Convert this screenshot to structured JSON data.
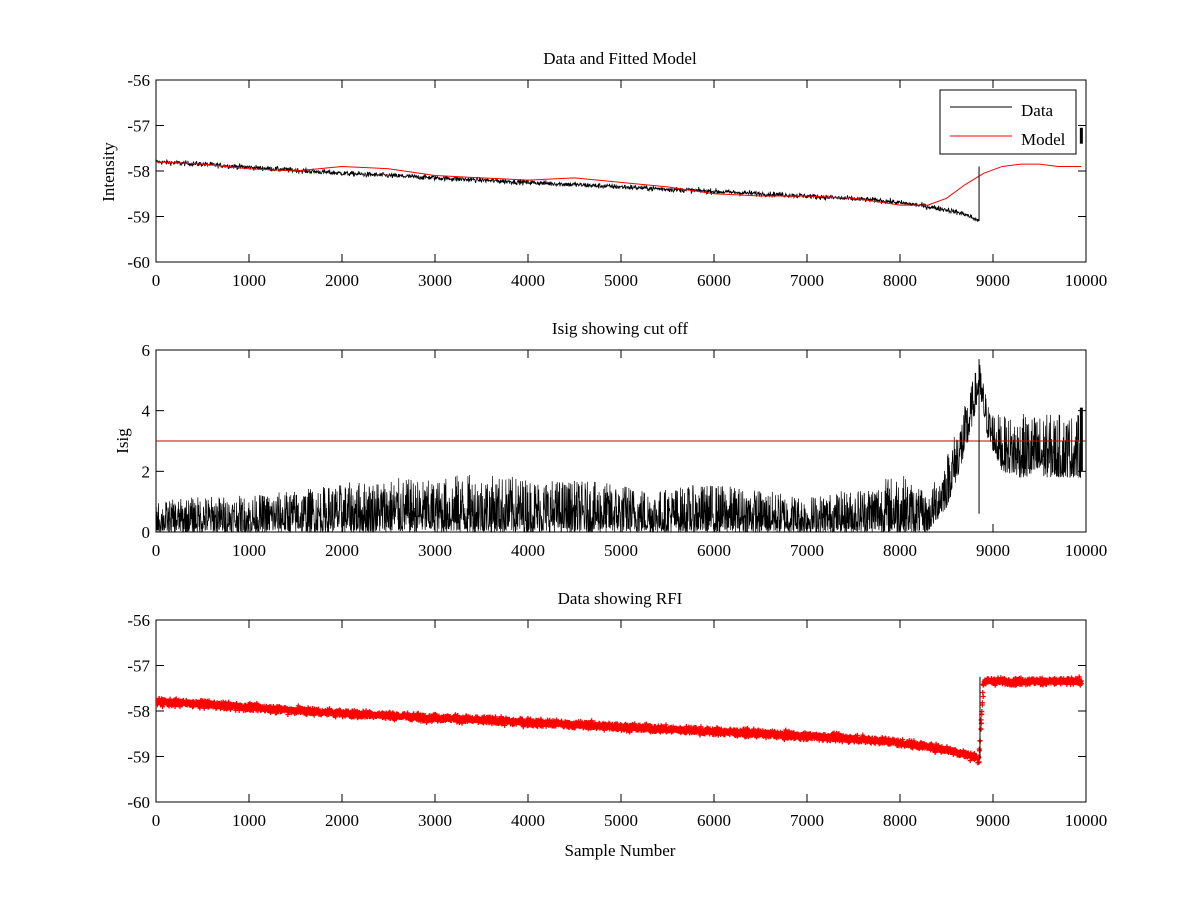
{
  "colors": {
    "data": "#000000",
    "model": "#ff0000",
    "cutoff": "#cc0000",
    "rfi": "#ff0000",
    "axes": "#000000",
    "background": "#ffffff"
  },
  "chart_data": [
    {
      "id": "top",
      "type": "line",
      "title": "Data and Fitted Model",
      "xlabel": "",
      "ylabel": "Intensity",
      "xlim": [
        0,
        10000
      ],
      "ylim": [
        -60,
        -56
      ],
      "xticks": [
        0,
        1000,
        2000,
        3000,
        4000,
        5000,
        6000,
        7000,
        8000,
        9000,
        10000
      ],
      "yticks": [
        -60,
        -59,
        -58,
        -57,
        -56
      ],
      "grid": false,
      "legend": {
        "placement": "top-right",
        "entries": [
          "Data",
          "Model"
        ]
      },
      "series": [
        {
          "name": "Data",
          "color": "#000000",
          "style": "noisy-line",
          "noise_halfwidth": 0.1,
          "x": [
            0,
            500,
            1000,
            2000,
            3000,
            4000,
            5000,
            6000,
            7000,
            7800,
            8200,
            8500,
            8700,
            8850
          ],
          "y": [
            -57.8,
            -57.85,
            -57.92,
            -58.05,
            -58.15,
            -58.25,
            -58.35,
            -58.45,
            -58.55,
            -58.65,
            -58.75,
            -58.85,
            -58.95,
            -59.1
          ]
        },
        {
          "name": "Model",
          "color": "#ff0000",
          "style": "line",
          "x": [
            0,
            500,
            1000,
            1500,
            2000,
            2500,
            3000,
            3500,
            4000,
            4500,
            5000,
            5500,
            6000,
            6500,
            7000,
            7500,
            8000,
            8300,
            8500,
            8700,
            8900,
            9100,
            9300,
            9500,
            9700,
            9950
          ],
          "y": [
            -57.8,
            -57.85,
            -57.95,
            -58.0,
            -57.9,
            -57.95,
            -58.1,
            -58.15,
            -58.2,
            -58.15,
            -58.25,
            -58.35,
            -58.5,
            -58.55,
            -58.55,
            -58.6,
            -58.75,
            -58.75,
            -58.6,
            -58.3,
            -58.05,
            -57.9,
            -57.85,
            -57.85,
            -57.9,
            -57.9
          ]
        }
      ],
      "markers": [
        {
          "x": 8850,
          "y_from": -59.1,
          "y_to": -57.9,
          "kind": "vertical-line"
        },
        {
          "x": 9950,
          "y_from": -57.05,
          "y_to": -57.4,
          "kind": "vertical-segment"
        }
      ]
    },
    {
      "id": "middle",
      "type": "line",
      "title": "Isig showing cut off",
      "xlabel": "",
      "ylabel": "Isig",
      "xlim": [
        0,
        10000
      ],
      "ylim": [
        0,
        6
      ],
      "xticks": [
        0,
        1000,
        2000,
        3000,
        4000,
        5000,
        6000,
        7000,
        8000,
        9000,
        10000
      ],
      "yticks": [
        0,
        2,
        4,
        6
      ],
      "grid": false,
      "cutoff": 3,
      "series": [
        {
          "name": "Isig",
          "color": "#000000",
          "style": "spiky",
          "x": [
            0,
            500,
            1000,
            1500,
            2000,
            2500,
            3000,
            3200,
            3500,
            4000,
            4500,
            5000,
            5400,
            5600,
            6000,
            6500,
            7000,
            7500,
            8000,
            8300,
            8500,
            8700,
            8850,
            8950,
            9100,
            9300,
            9600,
            9950
          ],
          "y_low": [
            0,
            0,
            0,
            0,
            0,
            0,
            0,
            0,
            0,
            0,
            0,
            0,
            0,
            0,
            0,
            0,
            0,
            0,
            0,
            0,
            0.8,
            2.5,
            4.5,
            3.0,
            2.0,
            1.8,
            1.8,
            1.8
          ],
          "y_high": [
            1.0,
            1.2,
            1.2,
            1.4,
            1.6,
            1.8,
            1.7,
            1.9,
            1.9,
            1.8,
            1.7,
            1.6,
            1.4,
            1.5,
            1.6,
            1.4,
            1.2,
            1.4,
            2.0,
            1.2,
            2.6,
            4.2,
            5.7,
            4.2,
            3.8,
            3.9,
            3.9,
            3.9
          ]
        }
      ],
      "markers": [
        {
          "x": 8850,
          "y_from": 0.6,
          "y_to": 5.7,
          "kind": "vertical-line"
        },
        {
          "x": 9950,
          "y_from": 2.0,
          "y_to": 4.1,
          "kind": "vertical-segment"
        }
      ]
    },
    {
      "id": "bottom",
      "type": "scatter",
      "title": "Data showing RFI",
      "xlabel": "Sample Number",
      "ylabel": "",
      "xlim": [
        0,
        10000
      ],
      "ylim": [
        -60,
        -56
      ],
      "xticks": [
        0,
        1000,
        2000,
        3000,
        4000,
        5000,
        6000,
        7000,
        8000,
        9000,
        10000
      ],
      "yticks": [
        -60,
        -59,
        -58,
        -57,
        -56
      ],
      "grid": false,
      "series": [
        {
          "name": "",
          "color": "#ff0000",
          "style": "dense-markers",
          "noise_halfwidth": 0.13,
          "x": [
            0,
            500,
            1000,
            2000,
            3000,
            4000,
            5000,
            6000,
            7000,
            7800,
            8200,
            8500,
            8700,
            8850,
            8900,
            9200,
            9500,
            9700,
            9950
          ],
          "y": [
            -57.8,
            -57.85,
            -57.92,
            -58.05,
            -58.15,
            -58.25,
            -58.35,
            -58.45,
            -58.55,
            -58.65,
            -58.75,
            -58.85,
            -58.95,
            -59.05,
            -57.35,
            -57.35,
            -57.35,
            -57.35,
            -57.35
          ]
        }
      ],
      "markers": [
        {
          "x": 8860,
          "y_from": -59.05,
          "y_to": -57.25,
          "kind": "vertical-line"
        }
      ]
    }
  ]
}
